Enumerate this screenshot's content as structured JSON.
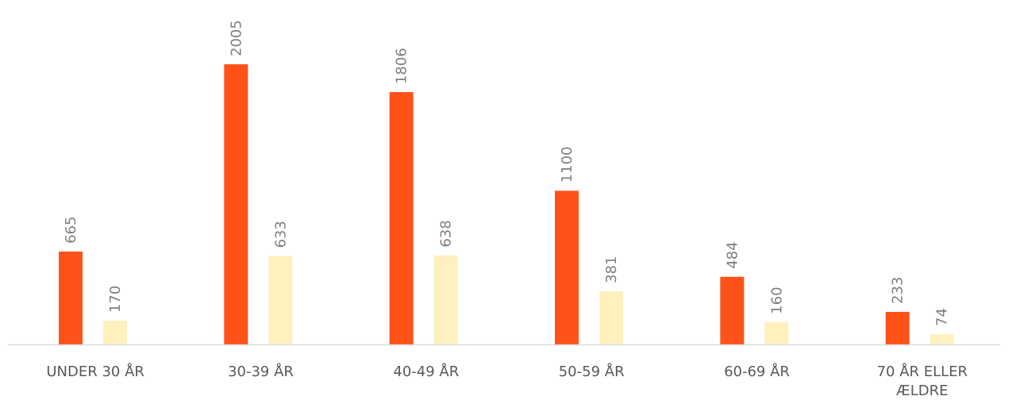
{
  "chart_data": {
    "type": "bar",
    "categories": [
      "UNDER 30 ÅR",
      "30-39 ÅR",
      "40-49 ÅR",
      "50-59 ÅR",
      "60-69 ÅR",
      "70 ÅR ELLER ÆLDRE"
    ],
    "category_lines": [
      [
        "UNDER 30 ÅR"
      ],
      [
        "30-39 ÅR"
      ],
      [
        "40-49 ÅR"
      ],
      [
        "50-59 ÅR"
      ],
      [
        "60-69 ÅR"
      ],
      [
        "70 ÅR ELLER",
        "ÆLDRE"
      ]
    ],
    "series": [
      {
        "values": [
          665,
          2005,
          1806,
          1100,
          484,
          233
        ],
        "color": "#FF5219"
      },
      {
        "values": [
          170,
          633,
          638,
          381,
          160,
          74
        ],
        "color": "#FFF1BE"
      }
    ],
    "ylim": [
      0,
      2005
    ],
    "grid": false,
    "legend": "none",
    "title": "",
    "xlabel": "",
    "ylabel": ""
  },
  "colors": {
    "axis": "#D9D9D9",
    "label_text": "#7F7F7F",
    "category_text": "#595959"
  }
}
